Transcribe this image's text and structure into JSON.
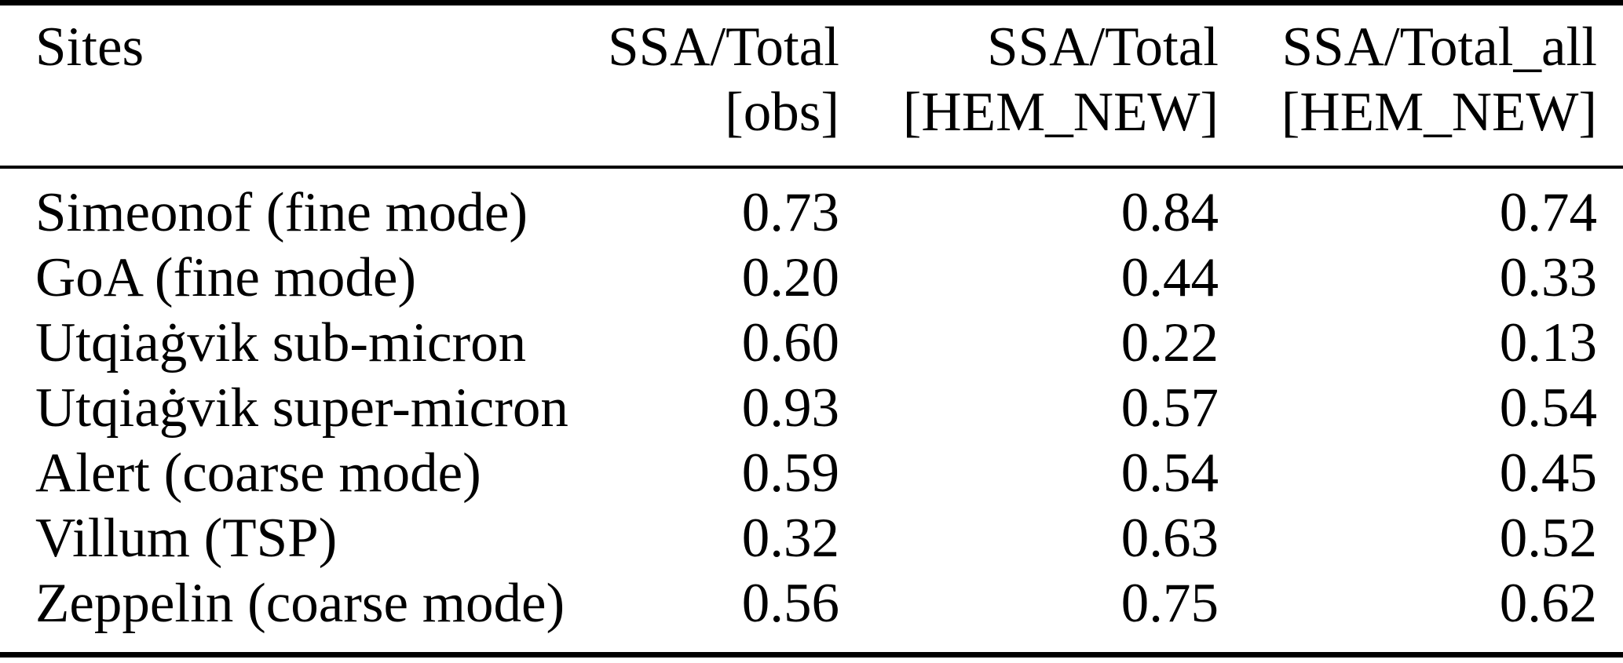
{
  "page": {
    "background_color": "#ffffff",
    "text_color": "#000000"
  },
  "table": {
    "columns": [
      {
        "line1": "Sites",
        "line2": ""
      },
      {
        "line1": "SSA/Total",
        "line2": "[obs]"
      },
      {
        "line1": "SSA/Total",
        "line2": "[HEM_NEW]"
      },
      {
        "line1": "SSA/Total_all",
        "line2": "[HEM_NEW]"
      }
    ],
    "rows": [
      {
        "site": "Simeonof (fine mode)",
        "values": [
          "0.73",
          "0.84",
          "0.74"
        ]
      },
      {
        "site": "GoA (fine mode)",
        "values": [
          "0.20",
          "0.44",
          "0.33"
        ]
      },
      {
        "site": "Utqiaġvik sub-micron",
        "values": [
          "0.60",
          "0.22",
          "0.13"
        ]
      },
      {
        "site": "Utqiaġvik super-micron",
        "values": [
          "0.93",
          "0.57",
          "0.54"
        ]
      },
      {
        "site": "Alert (coarse mode)",
        "values": [
          "0.59",
          "0.54",
          "0.45"
        ]
      },
      {
        "site": "Villum (TSP)",
        "values": [
          "0.32",
          "0.63",
          "0.52"
        ]
      },
      {
        "site": "Zeppelin (coarse mode)",
        "values": [
          "0.56",
          "0.75",
          "0.62"
        ]
      }
    ]
  },
  "chart_data": {
    "type": "table",
    "columns": [
      "Sites",
      "SSA/Total [obs]",
      "SSA/Total [HEM_NEW]",
      "SSA/Total_all [HEM_NEW]"
    ],
    "rows": [
      [
        "Simeonof (fine mode)",
        0.73,
        0.84,
        0.74
      ],
      [
        "GoA (fine mode)",
        0.2,
        0.44,
        0.33
      ],
      [
        "Utqiaġvik sub-micron",
        0.6,
        0.22,
        0.13
      ],
      [
        "Utqiaġvik super-micron",
        0.93,
        0.57,
        0.54
      ],
      [
        "Alert (coarse mode)",
        0.59,
        0.54,
        0.45
      ],
      [
        "Villum (TSP)",
        0.32,
        0.63,
        0.52
      ],
      [
        "Zeppelin (coarse mode)",
        0.56,
        0.75,
        0.62
      ]
    ]
  }
}
